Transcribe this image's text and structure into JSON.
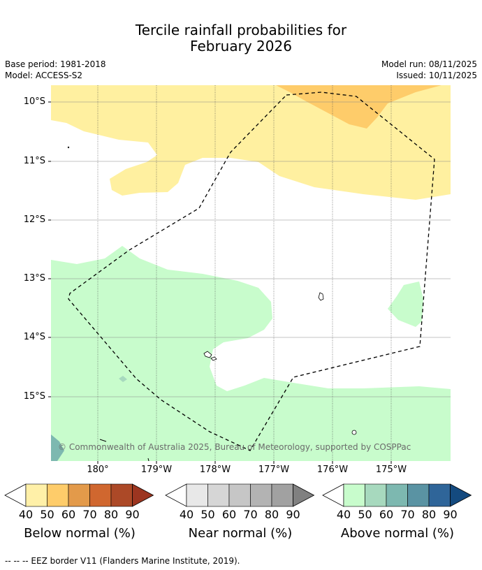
{
  "title": {
    "line1": "Tercile rainfall probabilities for",
    "line2": "February 2026"
  },
  "info": {
    "base_period": "Base period: 1981-2018",
    "model": "Model: ACCESS-S2",
    "model_run": "Model run: 08/11/2025",
    "issued": "Issued: 10/11/2025"
  },
  "map": {
    "lat_labels": [
      "10°S",
      "11°S",
      "12°S",
      "13°S",
      "14°S",
      "15°S"
    ],
    "lon_labels": [
      "180°",
      "179°W",
      "178°W",
      "177°W",
      "176°W",
      "175°W"
    ],
    "copyright": "© Commonwealth of Australia 2025, Bureau of Meteorology, supported by COSPPac"
  },
  "colorbars": [
    {
      "label": "Below normal (%)",
      "ticks": [
        "40",
        "50",
        "60",
        "70",
        "80",
        "90"
      ],
      "colors": [
        "#fff0a8",
        "#fecc6a",
        "#e39a4a",
        "#d0672f",
        "#ac4927",
        "#9c3520"
      ]
    },
    {
      "label": "Near normal (%)",
      "ticks": [
        "40",
        "50",
        "60",
        "70",
        "80",
        "90"
      ],
      "colors": [
        "#e8e8e8",
        "#d6d6d6",
        "#c6c6c6",
        "#b3b3b3",
        "#a1a1a1",
        "#808080"
      ]
    },
    {
      "label": "Above normal (%)",
      "ticks": [
        "40",
        "50",
        "60",
        "70",
        "80",
        "90"
      ],
      "colors": [
        "#c8fccc",
        "#a7d9be",
        "#7db8b0",
        "#5a93a3",
        "#2f6599",
        "#144a7f"
      ]
    }
  ],
  "footer": "-- -- -- EEZ border V11 (Flanders Marine Institute, 2019)."
}
